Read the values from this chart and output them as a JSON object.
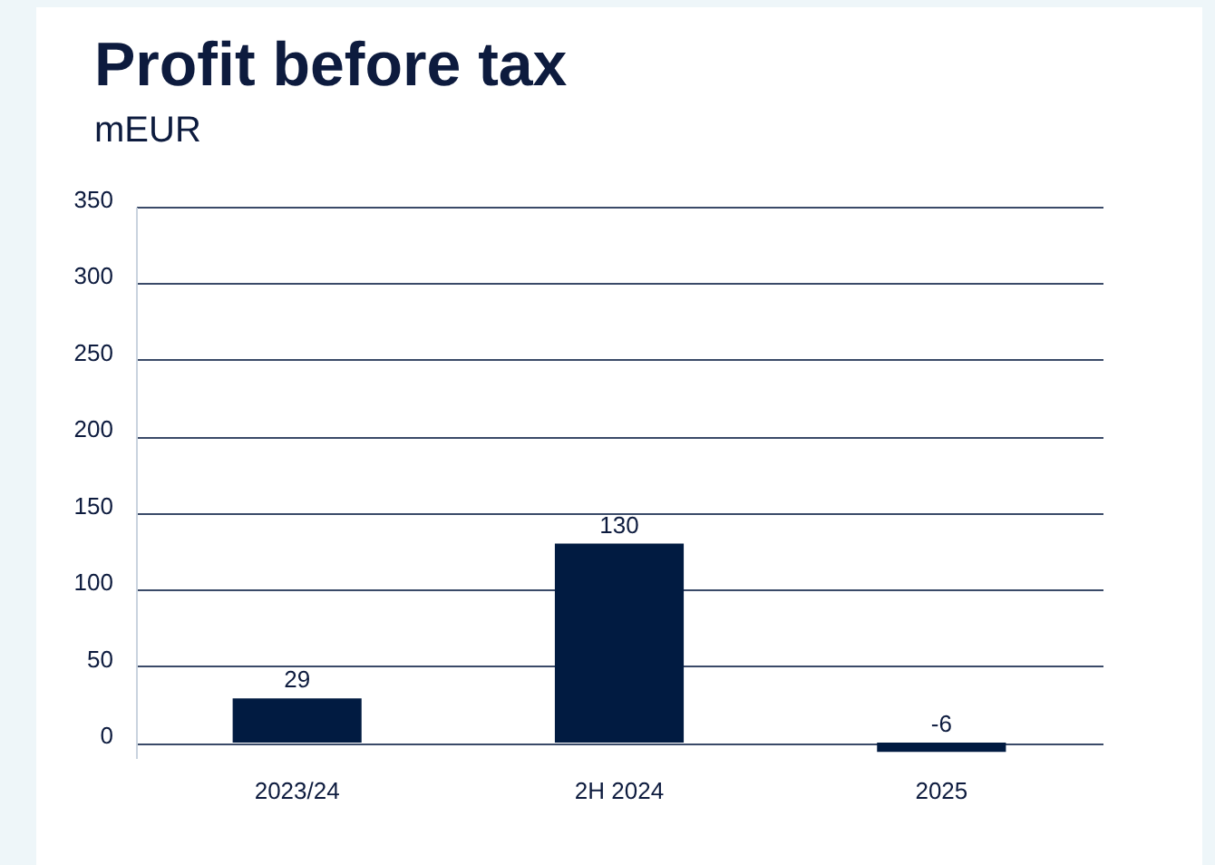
{
  "chart_data": {
    "type": "bar",
    "title": "Profit before tax",
    "subtitle": "mEUR",
    "categories": [
      "2023/24",
      "2H 2024",
      "2025"
    ],
    "values": [
      29,
      130,
      -6
    ],
    "color": "#011b41",
    "ylim": [
      -10,
      350
    ],
    "yticks": [
      0,
      50,
      100,
      150,
      200,
      250,
      300,
      350
    ],
    "grid": "y",
    "data_labels": true
  }
}
